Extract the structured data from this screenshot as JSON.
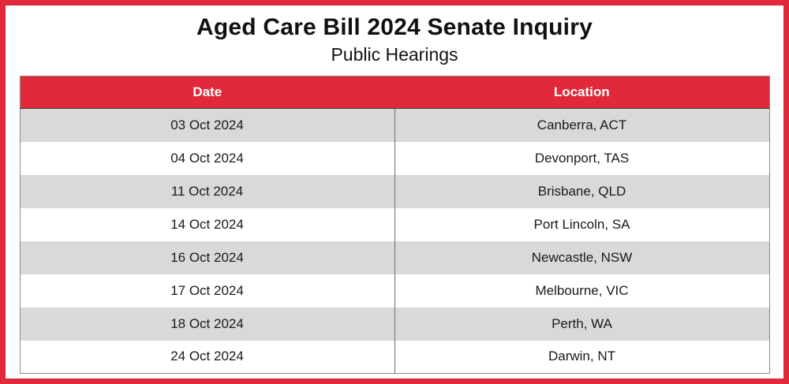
{
  "page": {
    "title": "Aged Care Bill 2024 Senate Inquiry",
    "subtitle": "Public Hearings"
  },
  "colors": {
    "accent_red": "#e2293b",
    "row_alt_gray": "#d9d9d9",
    "header_text": "#ffffff",
    "body_text": "#1a1a1a",
    "table_border": "#8a8a8a"
  },
  "table": {
    "columns": [
      "Date",
      "Location"
    ],
    "rows": [
      {
        "date": "03 Oct 2024",
        "location": "Canberra, ACT"
      },
      {
        "date": "04 Oct 2024",
        "location": "Devonport, TAS"
      },
      {
        "date": "11 Oct 2024",
        "location": "Brisbane, QLD"
      },
      {
        "date": "14 Oct 2024",
        "location": "Port Lincoln, SA"
      },
      {
        "date": "16 Oct 2024",
        "location": "Newcastle, NSW"
      },
      {
        "date": "17 Oct 2024",
        "location": "Melbourne, VIC"
      },
      {
        "date": "18 Oct 2024",
        "location": "Perth, WA"
      },
      {
        "date": "24 Oct 2024",
        "location": "Darwin, NT"
      }
    ]
  }
}
